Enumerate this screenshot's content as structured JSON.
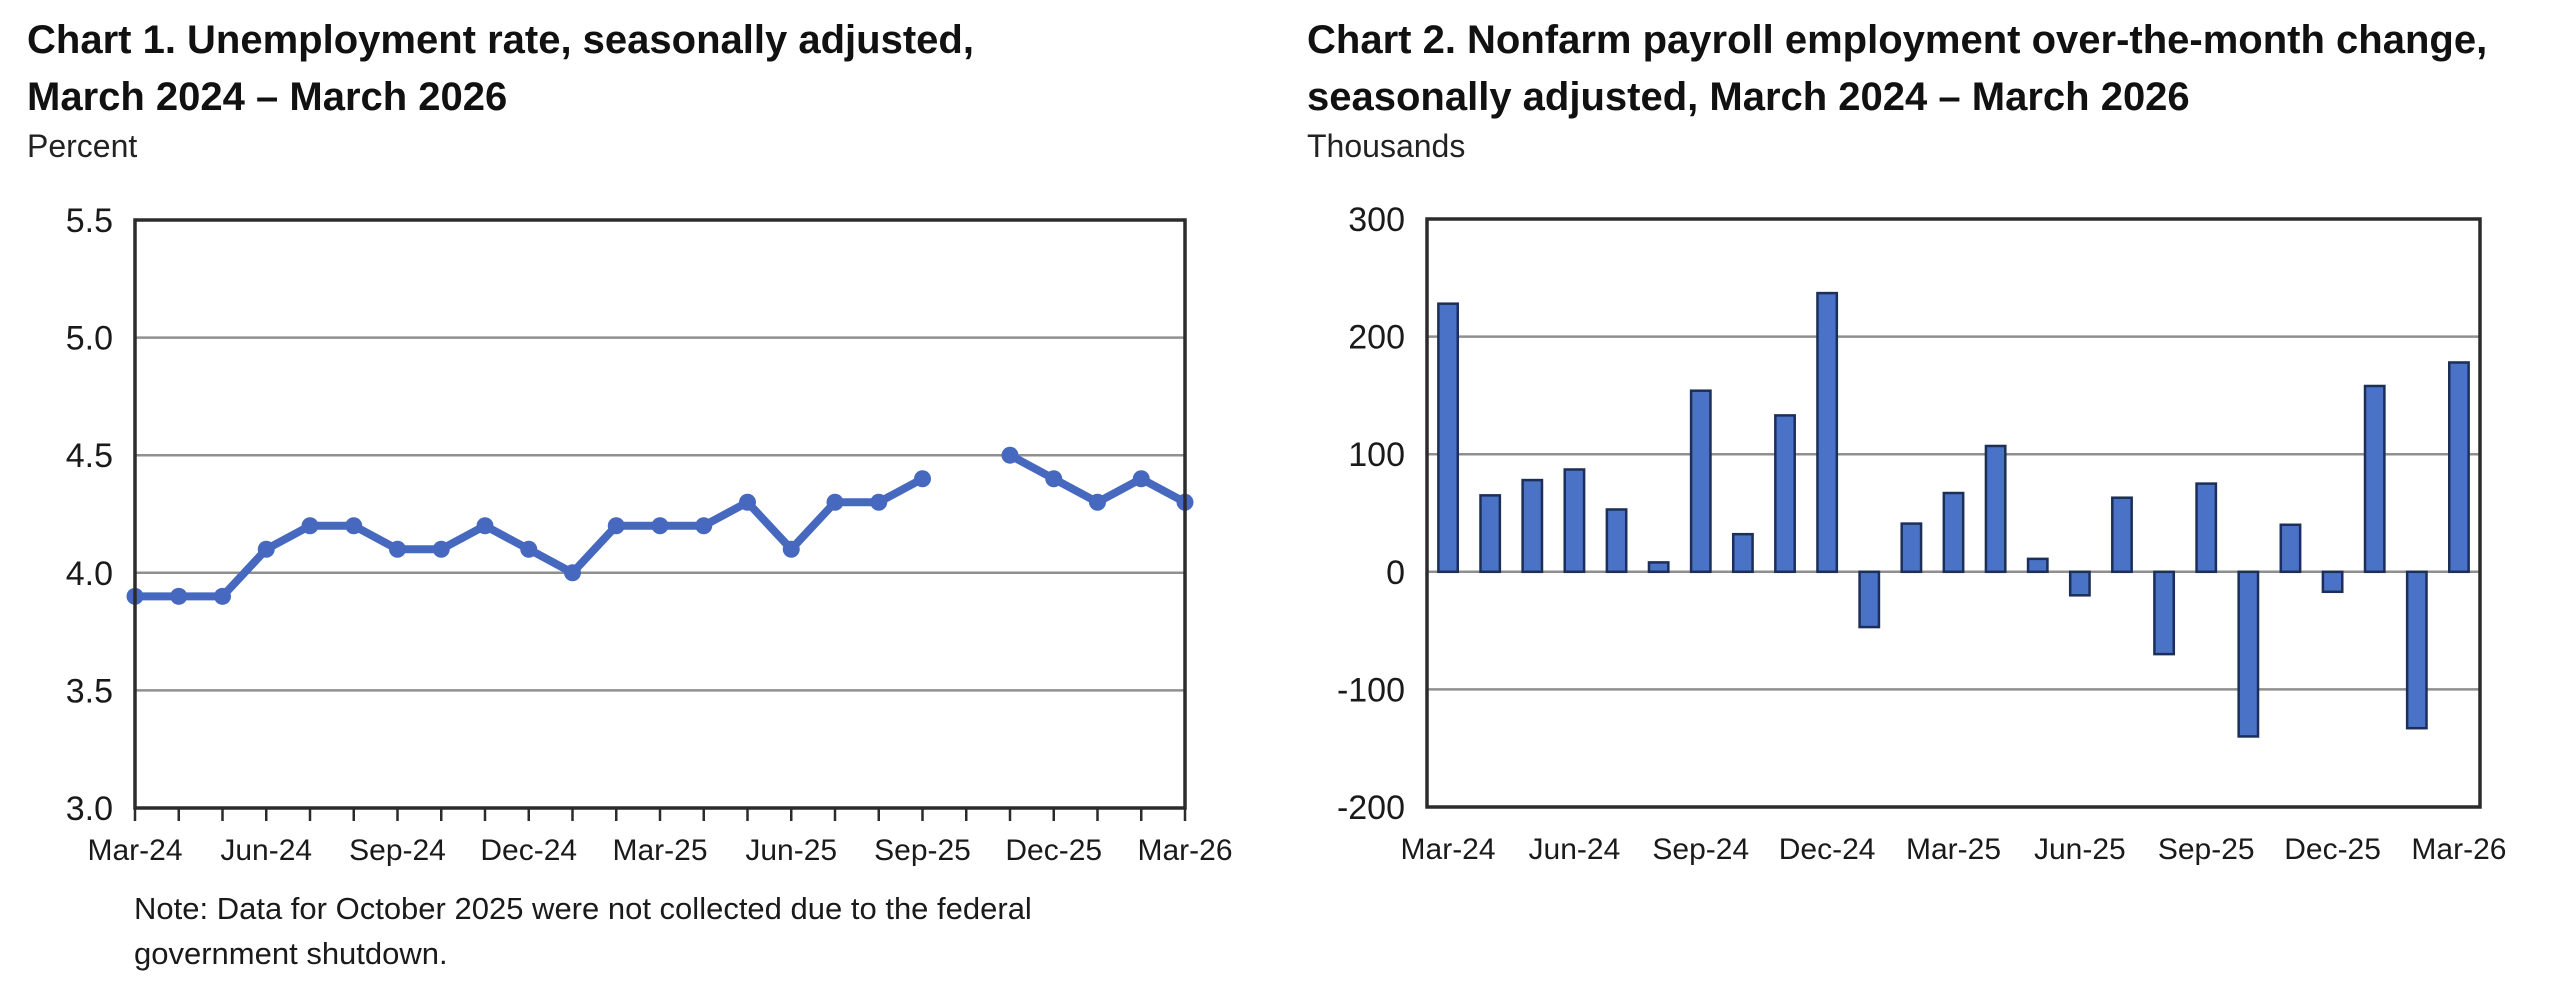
{
  "colors": {
    "background": "#ffffff",
    "text": "#1a1a1a",
    "axis": "#2b2b2b",
    "grid": "#8f8f8f",
    "line_blue": "#4668be",
    "bar_fill": "#4a72c6",
    "bar_outline": "#1c2f58"
  },
  "chart_data": [
    {
      "type": "line",
      "title": "Chart 1. Unemployment rate, seasonally adjusted,\nMarch 2024 – March 2026",
      "ylabel": "Percent",
      "x": [
        "Mar-24",
        "Apr-24",
        "May-24",
        "Jun-24",
        "Jul-24",
        "Aug-24",
        "Sep-24",
        "Oct-24",
        "Nov-24",
        "Dec-24",
        "Jan-25",
        "Feb-25",
        "Mar-25",
        "Apr-25",
        "May-25",
        "Jun-25",
        "Jul-25",
        "Aug-25",
        "Sep-25",
        "Oct-25",
        "Nov-25",
        "Dec-25",
        "Jan-26",
        "Feb-26",
        "Mar-26"
      ],
      "values": [
        3.9,
        3.9,
        3.9,
        4.1,
        4.2,
        4.2,
        4.1,
        4.1,
        4.2,
        4.1,
        4.0,
        4.2,
        4.2,
        4.2,
        4.3,
        4.1,
        4.3,
        4.3,
        4.4,
        null,
        4.5,
        4.4,
        4.3,
        4.4,
        4.3
      ],
      "ylim": [
        3.0,
        5.5
      ],
      "y_tick_values": [
        5.5,
        5.0,
        4.5,
        4.0,
        3.5,
        3.0
      ],
      "y_tick_labels": [
        "5.5",
        "5.0",
        "4.5",
        "4.0",
        "3.5",
        "3.0"
      ],
      "x_tick_labels": [
        "Mar-24",
        "Jun-24",
        "Sep-24",
        "Dec-24",
        "Mar-25",
        "Jun-25",
        "Sep-25",
        "Dec-25",
        "Mar-26"
      ],
      "x_label_every": 3,
      "grid": true,
      "legend": "none",
      "line_color": "#4668be",
      "missing_months": [
        "Oct-25"
      ],
      "note": "Note: Data for October 2025 were not collected due to the federal\ngovernment shutdown."
    },
    {
      "type": "bar",
      "title": "Chart 2. Nonfarm payroll employment over-the-month change,\nseasonally adjusted, March 2024 – March 2026",
      "ylabel": "Thousands",
      "x": [
        "Mar-24",
        "Apr-24",
        "May-24",
        "Jun-24",
        "Jul-24",
        "Aug-24",
        "Sep-24",
        "Oct-24",
        "Nov-24",
        "Dec-24",
        "Jan-25",
        "Feb-25",
        "Mar-25",
        "Apr-25",
        "May-25",
        "Jun-25",
        "Jul-25",
        "Aug-25",
        "Sep-25",
        "Oct-25",
        "Nov-25",
        "Dec-25",
        "Jan-26",
        "Feb-26",
        "Mar-26"
      ],
      "values": [
        228,
        65,
        78,
        87,
        53,
        8,
        154,
        32,
        133,
        237,
        -47,
        41,
        67,
        107,
        11,
        -20,
        63,
        -70,
        75,
        -140,
        40,
        -17,
        158,
        -133,
        178
      ],
      "ylim": [
        -200,
        300
      ],
      "y_tick_values": [
        300,
        200,
        100,
        0,
        -100,
        -200
      ],
      "y_tick_labels": [
        "300",
        "200",
        "100",
        "0",
        "-100",
        "-200"
      ],
      "x_tick_labels": [
        "Mar-24",
        "Jun-24",
        "Sep-24",
        "Dec-24",
        "Mar-25",
        "Jun-25",
        "Sep-25",
        "Dec-25",
        "Mar-26"
      ],
      "x_label_every": 3,
      "grid": true,
      "legend": "none",
      "bar_fill": "#4a72c6",
      "bar_outline": "#1c2f58"
    }
  ]
}
